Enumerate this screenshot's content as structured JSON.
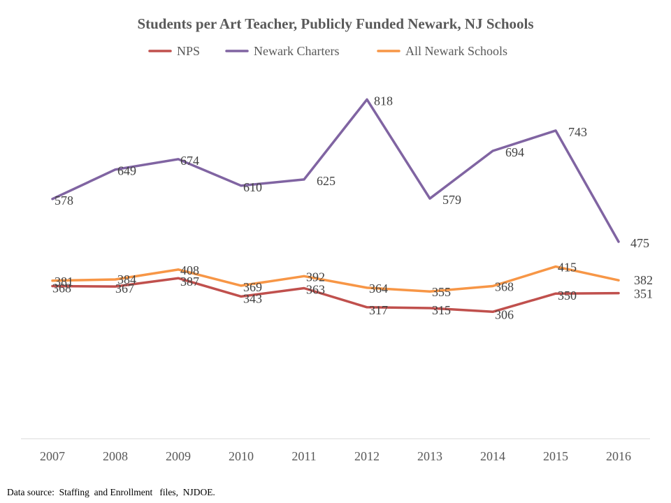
{
  "chart_data": {
    "type": "line",
    "title": "Students per Art Teacher, Publicly Funded Newark, NJ Schools",
    "categories": [
      "2007",
      "2008",
      "2009",
      "2010",
      "2011",
      "2012",
      "2013",
      "2014",
      "2015",
      "2016"
    ],
    "ylim": [
      0,
      1000
    ],
    "xlabel": "",
    "ylabel": "",
    "grid": false,
    "legend_position": "top",
    "series": [
      {
        "name": "NPS",
        "color": "#c0504d",
        "values": [
          368,
          367,
          387,
          343,
          363,
          317,
          315,
          306,
          350,
          351
        ]
      },
      {
        "name": "Newark Charters",
        "color": "#8064a2",
        "values": [
          578,
          649,
          674,
          610,
          625,
          818,
          579,
          694,
          743,
          475
        ]
      },
      {
        "name": "All Newark Schools",
        "color": "#f79646",
        "values": [
          381,
          384,
          408,
          369,
          392,
          364,
          355,
          368,
          415,
          382
        ]
      }
    ]
  },
  "source_note": "Data source:  Staffing  and Enrollment   files,  NJDOE."
}
